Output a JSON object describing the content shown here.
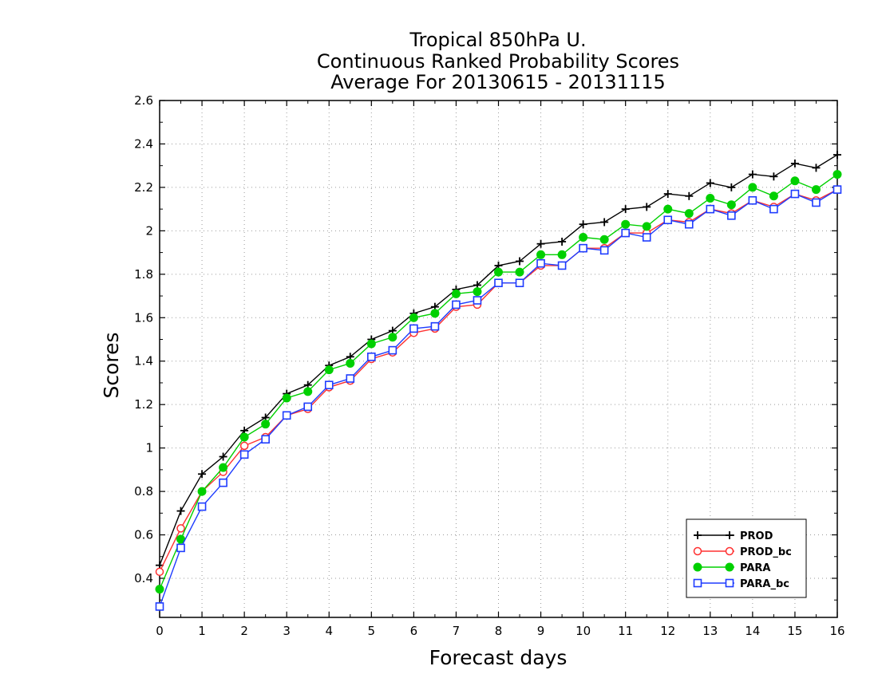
{
  "chart_data": {
    "type": "line",
    "title": [
      "Tropical 850hPa U.",
      "Continuous Ranked Probability Scores",
      "Average For 20130615 - 20131115"
    ],
    "xlabel": "Forecast days",
    "ylabel": "Scores",
    "xlim": [
      0,
      16
    ],
    "ylim": [
      0.22,
      2.6
    ],
    "x_ticks": [
      0,
      1,
      2,
      3,
      4,
      5,
      6,
      7,
      8,
      9,
      10,
      11,
      12,
      13,
      14,
      15,
      16
    ],
    "x_tick_labels": [
      "0",
      "1",
      "2",
      "3",
      "4",
      "5",
      "6",
      "7",
      "8",
      "9",
      "10",
      "11",
      "12",
      "13",
      "14",
      "15",
      "16"
    ],
    "y_ticks": [
      0.4,
      0.6,
      0.8,
      1,
      1.2,
      1.4,
      1.6,
      1.8,
      2,
      2.2,
      2.4,
      2.6
    ],
    "y_tick_labels": [
      "0.4",
      "0.6",
      "0.8",
      "1",
      "1.2",
      "1.4",
      "1.6",
      "1.8",
      "2",
      "2.2",
      "2.4",
      "2.6"
    ],
    "grid": true,
    "legend_position": "bottom-right",
    "x": [
      0,
      0.5,
      1,
      1.5,
      2,
      2.5,
      3,
      3.5,
      4,
      4.5,
      5,
      5.5,
      6,
      6.5,
      7,
      7.5,
      8,
      8.5,
      9,
      9.5,
      10,
      10.5,
      11,
      11.5,
      12,
      12.5,
      13,
      13.5,
      14,
      14.5,
      15,
      15.5,
      16
    ],
    "series": [
      {
        "name": "PROD",
        "color": "#000000",
        "marker": "plus",
        "values": [
          0.46,
          0.71,
          0.88,
          0.96,
          1.08,
          1.14,
          1.25,
          1.29,
          1.38,
          1.42,
          1.5,
          1.54,
          1.62,
          1.65,
          1.73,
          1.75,
          1.84,
          1.86,
          1.94,
          1.95,
          2.03,
          2.04,
          2.1,
          2.11,
          2.17,
          2.16,
          2.22,
          2.2,
          2.26,
          2.25,
          2.31,
          2.29,
          2.35
        ]
      },
      {
        "name": "PROD_bc",
        "color": "#ff3030",
        "marker": "circle-open",
        "values": [
          0.43,
          0.63,
          0.8,
          0.89,
          1.01,
          1.05,
          1.15,
          1.18,
          1.28,
          1.31,
          1.41,
          1.44,
          1.53,
          1.55,
          1.65,
          1.66,
          1.76,
          1.76,
          1.84,
          1.84,
          1.92,
          1.92,
          1.99,
          1.99,
          2.05,
          2.04,
          2.1,
          2.08,
          2.14,
          2.11,
          2.17,
          2.14,
          2.19
        ]
      },
      {
        "name": "PARA",
        "color": "#00d000",
        "marker": "circle-filled",
        "values": [
          0.35,
          0.58,
          0.8,
          0.91,
          1.05,
          1.11,
          1.23,
          1.26,
          1.36,
          1.39,
          1.48,
          1.51,
          1.6,
          1.62,
          1.71,
          1.72,
          1.81,
          1.81,
          1.89,
          1.89,
          1.97,
          1.96,
          2.03,
          2.02,
          2.1,
          2.08,
          2.15,
          2.12,
          2.2,
          2.16,
          2.23,
          2.19,
          2.26
        ]
      },
      {
        "name": "PARA_bc",
        "color": "#1e3cff",
        "marker": "square-open",
        "values": [
          0.27,
          0.54,
          0.73,
          0.84,
          0.97,
          1.04,
          1.15,
          1.19,
          1.29,
          1.32,
          1.42,
          1.45,
          1.55,
          1.56,
          1.66,
          1.68,
          1.76,
          1.76,
          1.85,
          1.84,
          1.92,
          1.91,
          1.99,
          1.97,
          2.05,
          2.03,
          2.1,
          2.07,
          2.14,
          2.1,
          2.17,
          2.13,
          2.19
        ]
      }
    ]
  }
}
